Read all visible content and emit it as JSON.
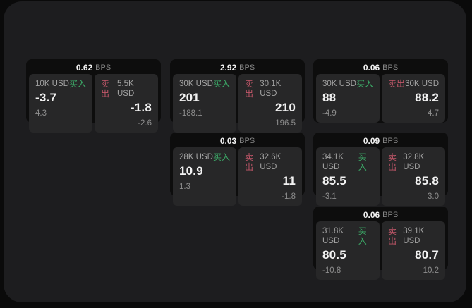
{
  "theme": {
    "page_bg": "#0a0a0a",
    "panel_bg": "#1d1d1f",
    "card_bg": "#0d0d0d",
    "tile_bg": "#272728",
    "buy_color": "#3cab68",
    "sell_color": "#c25769"
  },
  "labels": {
    "bps_unit": "BPS",
    "buy": "买入",
    "sell": "卖出"
  },
  "cards": [
    {
      "bps": "0.62",
      "buy": {
        "amount": "10K USD",
        "price": "-3.7",
        "delta": "4.3"
      },
      "sell": {
        "amount": "5.5K USD",
        "price": "-1.8",
        "delta": "-2.6"
      },
      "grid": {
        "col": 1,
        "row": 1
      }
    },
    {
      "bps": "2.92",
      "buy": {
        "amount": "30K USD",
        "price": "201",
        "delta": "-188.1"
      },
      "sell": {
        "amount": "30.1K USD",
        "price": "210",
        "delta": "196.5"
      },
      "grid": {
        "col": 2,
        "row": 1
      }
    },
    {
      "bps": "0.06",
      "buy": {
        "amount": "30K USD",
        "price": "88",
        "delta": "-4.9"
      },
      "sell": {
        "amount": "30K USD",
        "price": "88.2",
        "delta": "4.7"
      },
      "grid": {
        "col": 3,
        "row": 1
      }
    },
    {
      "bps": "0.03",
      "buy": {
        "amount": "28K USD",
        "price": "10.9",
        "delta": "1.3"
      },
      "sell": {
        "amount": "32.6K USD",
        "price": "11",
        "delta": "-1.8"
      },
      "grid": {
        "col": 2,
        "row": 2
      }
    },
    {
      "bps": "0.09",
      "buy": {
        "amount": "34.1K USD",
        "price": "85.5",
        "delta": "-3.1"
      },
      "sell": {
        "amount": "32.8K USD",
        "price": "85.8",
        "delta": "3.0"
      },
      "grid": {
        "col": 3,
        "row": 2
      }
    },
    {
      "bps": "0.06",
      "buy": {
        "amount": "31.8K USD",
        "price": "80.5",
        "delta": "-10.8"
      },
      "sell": {
        "amount": "39.1K USD",
        "price": "80.7",
        "delta": "10.2"
      },
      "grid": {
        "col": 3,
        "row": 3
      }
    }
  ]
}
